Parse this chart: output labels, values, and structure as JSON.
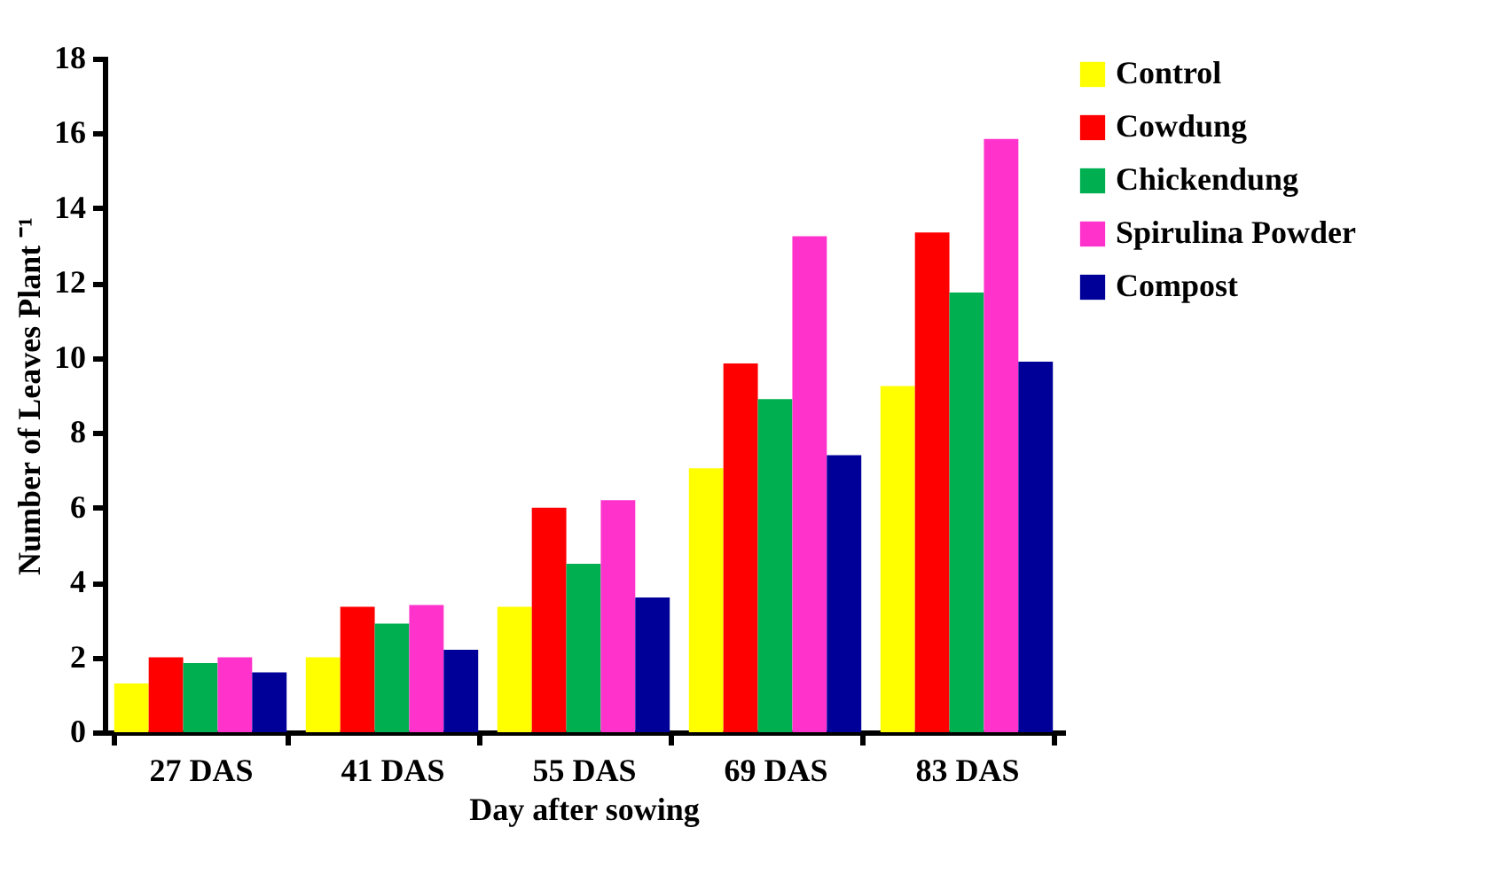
{
  "chart_data": {
    "type": "bar",
    "xlabel": "Day after sowing",
    "ylabel": "Number of Leaves Plant ⁻¹",
    "categories": [
      "27 DAS",
      "41 DAS",
      "55 DAS",
      "69 DAS",
      "83 DAS"
    ],
    "series": [
      {
        "name": "Control",
        "color": "#ffff00",
        "values": [
          1.3,
          2.0,
          3.35,
          7.05,
          9.25
        ]
      },
      {
        "name": "Cowdung",
        "color": "#ff0000",
        "values": [
          2.0,
          3.35,
          6.0,
          9.85,
          13.35
        ]
      },
      {
        "name": "Chickendung",
        "color": "#00b050",
        "values": [
          1.85,
          2.9,
          4.5,
          8.9,
          11.75
        ]
      },
      {
        "name": "Spirulina Powder",
        "color": "#ff33cc",
        "values": [
          2.0,
          3.4,
          6.2,
          13.25,
          15.85
        ]
      },
      {
        "name": "Compost",
        "color": "#000099",
        "values": [
          1.6,
          2.2,
          3.6,
          7.4,
          9.9
        ]
      }
    ],
    "ylim": [
      0,
      18
    ],
    "yticks": [
      0,
      2,
      4,
      6,
      8,
      10,
      12,
      14,
      16,
      18
    ],
    "grid": false,
    "legend": "top right"
  }
}
